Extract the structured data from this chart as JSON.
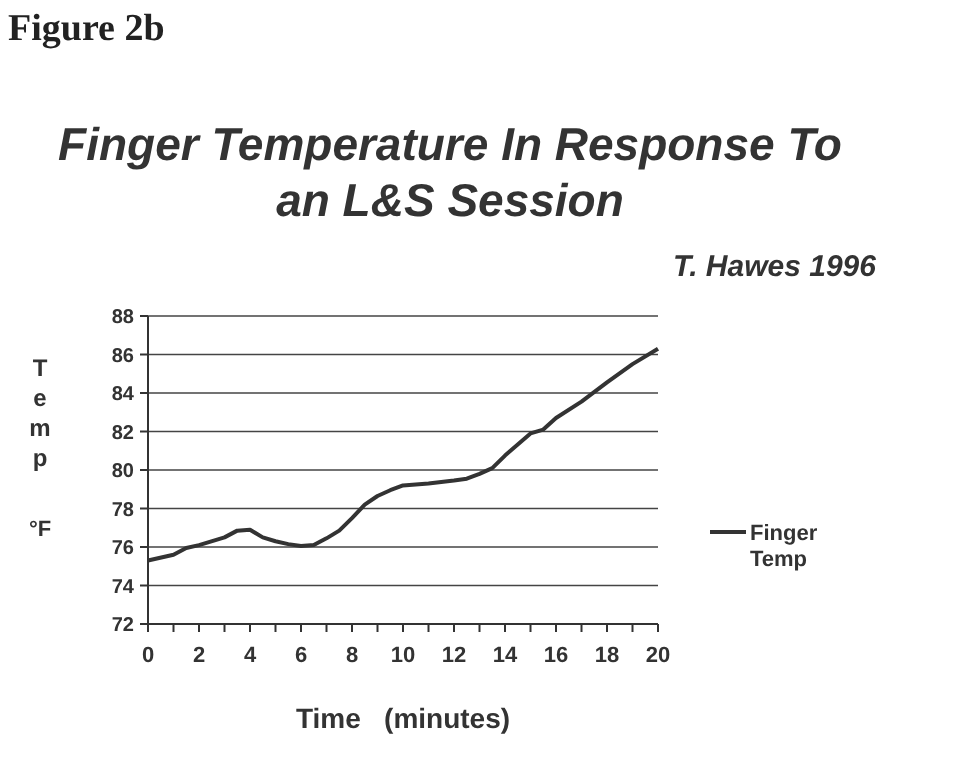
{
  "chart_data": {
    "type": "line",
    "title": "Finger Temperature In Response To an L&S Session",
    "subtitle": "T. Hawes   1996",
    "xlabel": "Time   (minutes)",
    "ylabel": "Temp °F",
    "annotations": [
      "Figure 2b"
    ],
    "x": [
      0,
      1,
      1.5,
      2,
      3,
      3.5,
      4,
      4.5,
      5,
      5.5,
      6,
      6.5,
      7,
      7.5,
      8,
      8.5,
      9,
      9.5,
      10,
      11,
      12,
      12.5,
      13,
      13.5,
      14,
      15,
      15.5,
      16,
      17,
      18,
      19,
      20
    ],
    "series": [
      {
        "name": "Finger Temp",
        "color": "#333333",
        "values": [
          75.3,
          75.6,
          75.95,
          76.1,
          76.5,
          76.85,
          76.9,
          76.5,
          76.3,
          76.15,
          76.05,
          76.1,
          76.45,
          76.85,
          77.5,
          78.2,
          78.65,
          78.95,
          79.2,
          79.3,
          79.45,
          79.55,
          79.8,
          80.1,
          80.75,
          81.9,
          82.1,
          82.7,
          83.55,
          84.55,
          85.5,
          86.3
        ]
      }
    ],
    "xlim": [
      0,
      20
    ],
    "xticks": [
      0,
      {
        "value": 1,
        "label": null
      },
      2,
      {
        "value": 3,
        "label": null
      },
      4,
      {
        "value": 5,
        "label": null
      },
      6,
      {
        "value": 7,
        "label": null
      },
      8,
      {
        "value": 9,
        "label": null
      },
      10,
      {
        "value": 11,
        "label": null
      },
      12,
      {
        "value": 13,
        "label": null
      },
      14,
      {
        "value": 15,
        "label": null
      },
      16,
      {
        "value": 17,
        "label": null
      },
      18,
      {
        "value": 19,
        "label": null
      },
      20
    ],
    "ylim": [
      72,
      88
    ],
    "yticks": [
      72,
      74,
      76,
      78,
      80,
      82,
      84,
      86,
      88
    ],
    "grid": "y",
    "legend": "right",
    "marker": "none",
    "line_style": "solid"
  }
}
